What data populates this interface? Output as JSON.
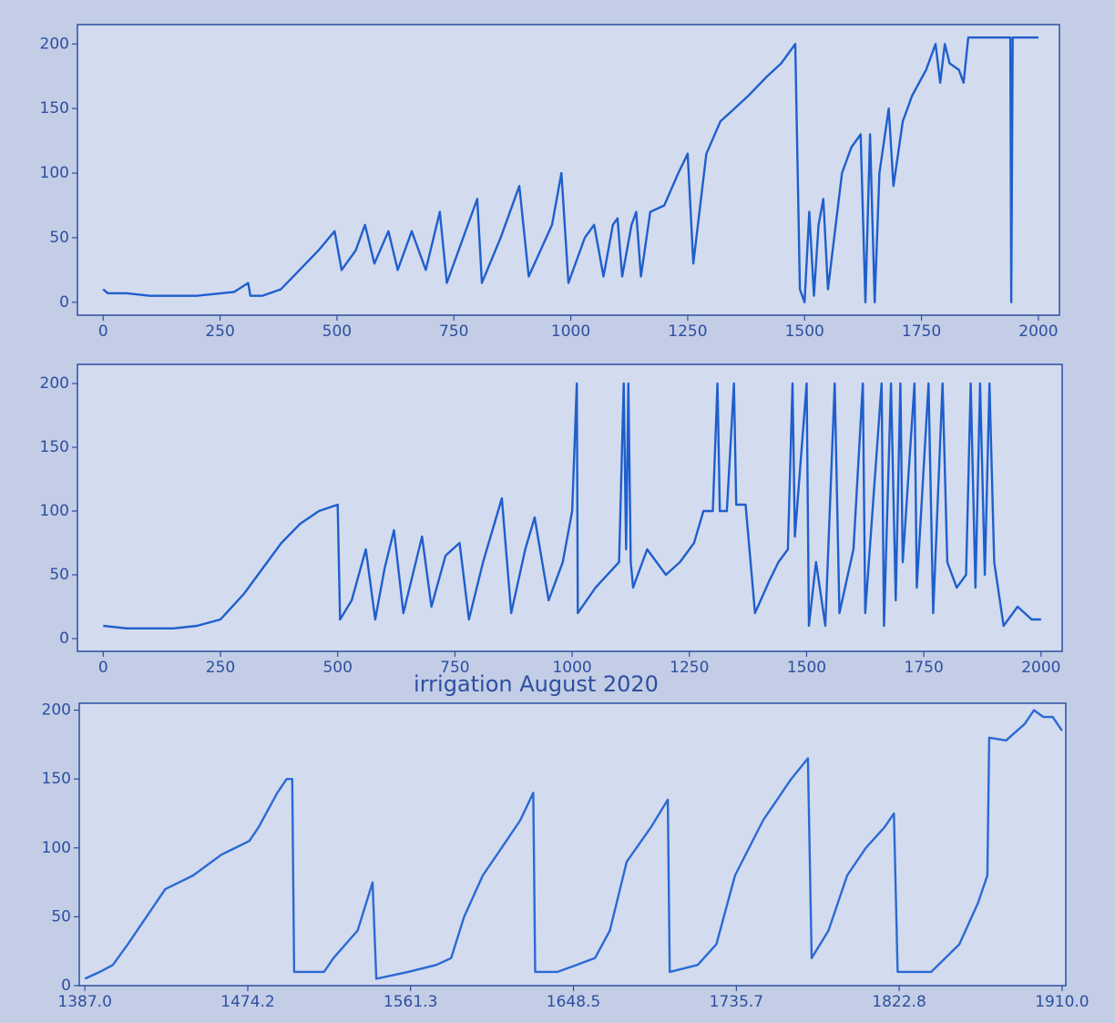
{
  "chart_data": [
    {
      "type": "line",
      "color": "#1f5fcc",
      "xlim": [
        -55,
        2045
      ],
      "ylim": [
        -10,
        215
      ],
      "xticks": [
        0,
        250,
        500,
        750,
        1000,
        1250,
        1500,
        1750,
        2000
      ],
      "yticks": [
        0,
        50,
        100,
        150,
        200
      ],
      "x": [
        0,
        10,
        50,
        100,
        200,
        280,
        310,
        315,
        340,
        380,
        420,
        460,
        495,
        510,
        540,
        560,
        580,
        610,
        630,
        660,
        690,
        720,
        735,
        770,
        800,
        810,
        850,
        890,
        910,
        960,
        980,
        995,
        1030,
        1050,
        1070,
        1090,
        1100,
        1110,
        1130,
        1140,
        1150,
        1170,
        1200,
        1230,
        1250,
        1262,
        1290,
        1320,
        1350,
        1380,
        1420,
        1450,
        1480,
        1490,
        1500,
        1510,
        1520,
        1530,
        1540,
        1550,
        1580,
        1600,
        1620,
        1630,
        1640,
        1650,
        1660,
        1680,
        1690,
        1710,
        1730,
        1760,
        1780,
        1790,
        1800,
        1810,
        1830,
        1840,
        1850,
        1900,
        1940,
        1942,
        1945,
        2000
      ],
      "values": [
        10,
        7,
        7,
        5,
        5,
        8,
        15,
        5,
        5,
        10,
        25,
        40,
        55,
        25,
        40,
        60,
        30,
        55,
        25,
        55,
        25,
        70,
        15,
        50,
        80,
        15,
        50,
        90,
        20,
        60,
        100,
        15,
        50,
        60,
        20,
        60,
        65,
        20,
        60,
        70,
        20,
        70,
        75,
        100,
        115,
        30,
        115,
        140,
        150,
        160,
        175,
        185,
        200,
        10,
        0,
        70,
        5,
        60,
        80,
        10,
        100,
        120,
        130,
        0,
        130,
        0,
        100,
        150,
        90,
        140,
        160,
        180,
        200,
        170,
        200,
        185,
        180,
        170,
        205,
        205,
        205,
        0,
        205,
        205
      ]
    },
    {
      "type": "line",
      "color": "#1f5fcc",
      "xlim": [
        -55,
        2045
      ],
      "ylim": [
        -10,
        215
      ],
      "xticks": [
        0,
        250,
        500,
        750,
        1000,
        1250,
        1500,
        1750,
        2000
      ],
      "yticks": [
        0,
        50,
        100,
        150,
        200
      ],
      "x": [
        0,
        50,
        150,
        200,
        250,
        300,
        340,
        380,
        420,
        460,
        500,
        505,
        530,
        560,
        580,
        600,
        620,
        640,
        680,
        700,
        730,
        760,
        780,
        810,
        850,
        870,
        900,
        920,
        950,
        980,
        1000,
        1010,
        1012,
        1050,
        1100,
        1110,
        1115,
        1120,
        1125,
        1130,
        1160,
        1200,
        1230,
        1260,
        1280,
        1300,
        1310,
        1315,
        1330,
        1345,
        1350,
        1370,
        1390,
        1420,
        1440,
        1460,
        1470,
        1475,
        1500,
        1505,
        1520,
        1540,
        1560,
        1570,
        1600,
        1620,
        1625,
        1660,
        1665,
        1680,
        1690,
        1700,
        1705,
        1730,
        1735,
        1760,
        1770,
        1790,
        1800,
        1820,
        1840,
        1850,
        1860,
        1870,
        1880,
        1890,
        1900,
        1920,
        1950,
        1980,
        2000
      ],
      "values": [
        10,
        8,
        8,
        10,
        15,
        35,
        55,
        75,
        90,
        100,
        105,
        15,
        30,
        70,
        15,
        55,
        85,
        20,
        80,
        25,
        65,
        75,
        15,
        60,
        110,
        20,
        70,
        95,
        30,
        60,
        100,
        200,
        20,
        40,
        60,
        200,
        70,
        200,
        60,
        40,
        70,
        50,
        60,
        75,
        100,
        100,
        200,
        100,
        100,
        200,
        105,
        105,
        20,
        45,
        60,
        70,
        200,
        80,
        200,
        10,
        60,
        10,
        200,
        20,
        70,
        200,
        20,
        200,
        10,
        200,
        30,
        200,
        60,
        200,
        40,
        200,
        20,
        200,
        60,
        40,
        50,
        200,
        40,
        200,
        50,
        200,
        60,
        10,
        25,
        15,
        15
      ]
    },
    {
      "type": "line",
      "color": "#2a6ad4",
      "title": "irrigation August 2020",
      "xlim": [
        1384,
        1912
      ],
      "ylim": [
        0,
        205
      ],
      "xticks": [
        {
          "value": 1387.0,
          "label": "1387.0"
        },
        {
          "value": 1474.2,
          "label": "1474.2"
        },
        {
          "value": 1561.3,
          "label": "1561.3"
        },
        {
          "value": 1648.5,
          "label": "1648.5"
        },
        {
          "value": 1735.7,
          "label": "1735.7"
        },
        {
          "value": 1822.8,
          "label": "1822.8"
        },
        {
          "value": 1910.0,
          "label": "1910.0"
        }
      ],
      "yticks": [
        0,
        50,
        100,
        150,
        200
      ],
      "x": [
        1387,
        1395,
        1402,
        1410,
        1420,
        1430,
        1445,
        1460,
        1475,
        1480,
        1490,
        1495,
        1498,
        1499,
        1515,
        1520,
        1533,
        1541,
        1543,
        1560,
        1575,
        1583,
        1590,
        1600,
        1610,
        1620,
        1627,
        1628,
        1640,
        1660,
        1668,
        1677,
        1690,
        1699,
        1700,
        1715,
        1725,
        1735,
        1750,
        1765,
        1774,
        1776,
        1785,
        1795,
        1805,
        1815,
        1820,
        1822,
        1840,
        1855,
        1865,
        1870,
        1871,
        1880,
        1890,
        1895,
        1900,
        1905,
        1910
      ],
      "values": [
        5,
        10,
        15,
        30,
        50,
        70,
        80,
        95,
        105,
        115,
        140,
        150,
        150,
        10,
        10,
        20,
        40,
        75,
        5,
        10,
        15,
        20,
        50,
        80,
        100,
        120,
        140,
        10,
        10,
        20,
        40,
        90,
        115,
        135,
        10,
        15,
        30,
        80,
        120,
        150,
        165,
        20,
        40,
        80,
        100,
        115,
        125,
        10,
        10,
        30,
        60,
        80,
        180,
        178,
        190,
        200,
        195,
        195,
        185
      ]
    }
  ]
}
